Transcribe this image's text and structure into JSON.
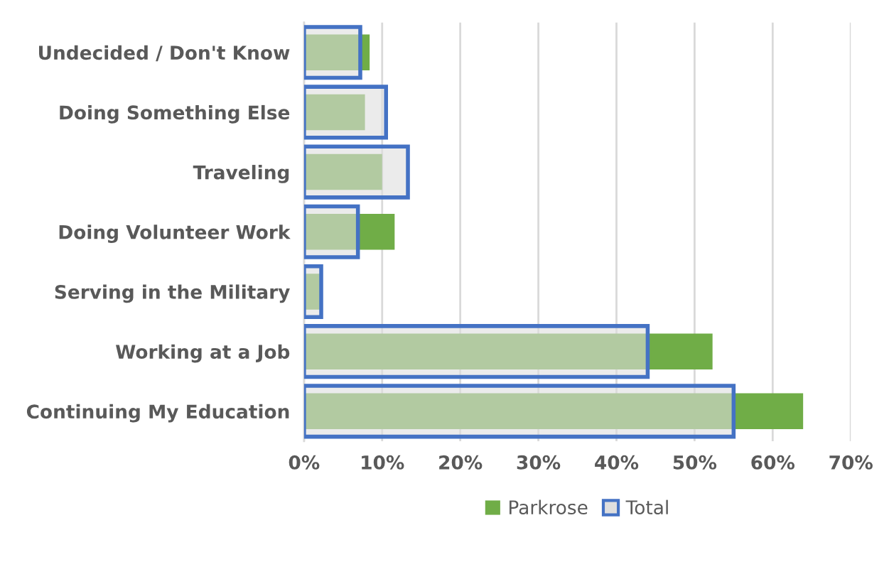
{
  "chart_data": {
    "type": "bar",
    "orientation": "horizontal",
    "categories": [
      "Undecided / Don't Know",
      "Doing Something Else",
      "Traveling",
      "Doing Volunteer Work",
      "Serving in the Military",
      "Working at a Job",
      "Continuing My Education"
    ],
    "series": [
      {
        "name": "Parkrose",
        "color": "#70ad47",
        "values": [
          8.4,
          7.8,
          10.0,
          11.6,
          2.1,
          52.3,
          63.9
        ]
      },
      {
        "name": "Total",
        "color": "#4472c4",
        "values": [
          7.2,
          10.5,
          13.3,
          6.9,
          2.2,
          44.0,
          55.0
        ]
      }
    ],
    "xlim": [
      0,
      70
    ],
    "xticks": [
      {
        "value": 0,
        "label": "0%"
      },
      {
        "value": 10,
        "label": "10%"
      },
      {
        "value": 20,
        "label": "20%"
      },
      {
        "value": 30,
        "label": "30%"
      },
      {
        "value": 40,
        "label": "40%"
      },
      {
        "value": 50,
        "label": "50%"
      },
      {
        "value": 60,
        "label": "60%"
      },
      {
        "value": 70,
        "label": "70%"
      }
    ],
    "grid": "x",
    "legend": "bottom"
  }
}
